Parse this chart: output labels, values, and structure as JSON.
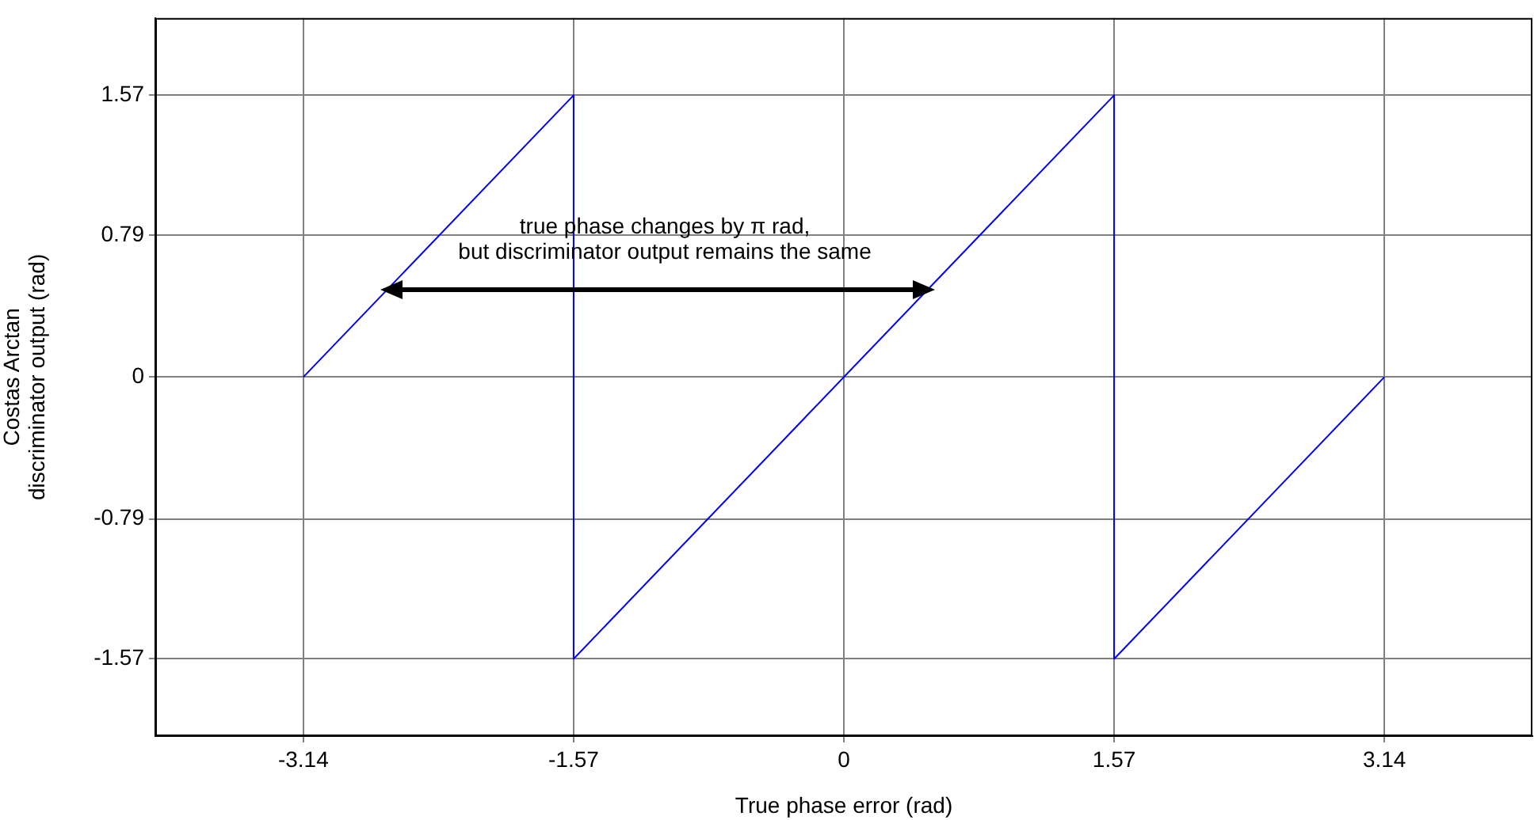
{
  "chart_data": {
    "type": "line",
    "xlabel": "True phase error (rad)",
    "ylabel": "Costas Arctan\ndiscriminator output (rad)",
    "x": [
      -3.14,
      -1.57,
      -1.57,
      1.57,
      1.57,
      3.14
    ],
    "series": [
      {
        "color": "#0000ff",
        "values": [
          0,
          1.57,
          -1.57,
          1.57,
          -1.57,
          0
        ]
      }
    ],
    "xlim": [
      -4,
      4
    ],
    "xticks": [
      -3.14,
      -1.57,
      0,
      1.57,
      3.14
    ],
    "ylim": [
      -2,
      2
    ],
    "yticks": [
      -1.57,
      -0.79,
      0,
      0.79,
      1.57
    ],
    "grid": true,
    "legend": false,
    "marker": "none",
    "line_style": "solid",
    "annotations": [
      "true phase changes by π rad,\nbut discriminator output remains the same"
    ]
  }
}
